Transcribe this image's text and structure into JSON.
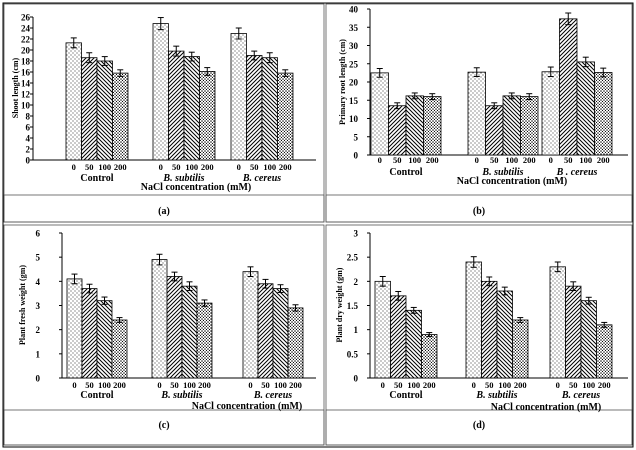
{
  "figure": {
    "panels": [
      {
        "label": "(a)"
      },
      {
        "label": "(b)"
      },
      {
        "label": "(c)"
      },
      {
        "label": "(d)"
      }
    ]
  },
  "chart_data": [
    {
      "type": "bar",
      "ylabel": "Shoot length (cm)",
      "xlabel": "NaCl concentration (mM)",
      "ylim": [
        0,
        26
      ],
      "yticks": [
        0,
        2,
        4,
        6,
        8,
        10,
        12,
        14,
        16,
        18,
        20,
        22,
        24,
        26
      ],
      "groups": [
        "Control",
        "B. subtilis",
        "B. cereus"
      ],
      "concentrations": [
        "0",
        "50",
        "100",
        "200"
      ],
      "series": [
        {
          "name": "0",
          "values": [
            21.3,
            24.8,
            23.0
          ],
          "errors": [
            0.9,
            1.1,
            1.0
          ]
        },
        {
          "name": "50",
          "values": [
            18.6,
            19.8,
            19.0
          ],
          "errors": [
            0.9,
            0.9,
            0.8
          ]
        },
        {
          "name": "100",
          "values": [
            18.0,
            18.8,
            18.6
          ],
          "errors": [
            0.8,
            0.8,
            0.9
          ]
        },
        {
          "name": "200",
          "values": [
            15.8,
            16.1,
            15.8
          ],
          "errors": [
            0.6,
            0.7,
            0.6
          ]
        }
      ]
    },
    {
      "type": "bar",
      "ylabel": "Primary root length (cm)",
      "xlabel": "NaCl concentration (mM)",
      "ylim": [
        0,
        40
      ],
      "yticks": [
        0,
        5,
        10,
        15,
        20,
        25,
        30,
        35,
        40
      ],
      "groups": [
        "Control",
        "B. subtilis",
        "B . cereus"
      ],
      "concentrations": [
        "0",
        "50",
        "100",
        "200"
      ],
      "series": [
        {
          "name": "0",
          "values": [
            22.5,
            22.7,
            22.8
          ],
          "errors": [
            1.2,
            1.2,
            1.3
          ]
        },
        {
          "name": "50",
          "values": [
            13.5,
            13.5,
            37.3
          ],
          "errors": [
            0.8,
            0.8,
            1.6
          ]
        },
        {
          "name": "100",
          "values": [
            16.2,
            16.2,
            25.5
          ],
          "errors": [
            0.8,
            0.8,
            1.3
          ]
        },
        {
          "name": "200",
          "values": [
            16.0,
            16.0,
            22.6
          ],
          "errors": [
            0.8,
            0.8,
            1.2
          ]
        }
      ]
    },
    {
      "type": "bar",
      "ylabel": "Plant fresh weight (gm)",
      "xlabel": "NaCl concentration (mM)",
      "ylim": [
        0,
        6
      ],
      "yticks": [
        0,
        1,
        2,
        3,
        4,
        5,
        6
      ],
      "groups": [
        "Control",
        "B. subtilis",
        "B. cereus"
      ],
      "concentrations": [
        "0",
        "50",
        "100",
        "200"
      ],
      "series": [
        {
          "name": "0",
          "values": [
            4.1,
            4.9,
            4.4
          ],
          "errors": [
            0.2,
            0.22,
            0.2
          ]
        },
        {
          "name": "50",
          "values": [
            3.7,
            4.2,
            3.9
          ],
          "errors": [
            0.18,
            0.18,
            0.18
          ]
        },
        {
          "name": "100",
          "values": [
            3.2,
            3.8,
            3.7
          ],
          "errors": [
            0.15,
            0.18,
            0.16
          ]
        },
        {
          "name": "200",
          "values": [
            2.4,
            3.1,
            2.9
          ],
          "errors": [
            0.1,
            0.13,
            0.13
          ]
        }
      ]
    },
    {
      "type": "bar",
      "ylabel": "Plant dry weight (gm)",
      "xlabel": "NaCl concentration (mM)",
      "ylim": [
        0,
        3
      ],
      "yticks": [
        "0",
        "0.5",
        "1",
        "1.5",
        "2",
        "2.5",
        "3"
      ],
      "groups": [
        "Control",
        "B. subtilis",
        "B. cereus"
      ],
      "concentrations": [
        "0",
        "50",
        "100",
        "200"
      ],
      "series": [
        {
          "name": "0",
          "values": [
            2.0,
            2.4,
            2.3
          ],
          "errors": [
            0.1,
            0.11,
            0.1
          ]
        },
        {
          "name": "50",
          "values": [
            1.7,
            2.0,
            1.9
          ],
          "errors": [
            0.09,
            0.09,
            0.09
          ]
        },
        {
          "name": "100",
          "values": [
            1.4,
            1.8,
            1.6
          ],
          "errors": [
            0.06,
            0.08,
            0.07
          ]
        },
        {
          "name": "200",
          "values": [
            0.9,
            1.2,
            1.1
          ],
          "errors": [
            0.04,
            0.05,
            0.05
          ]
        }
      ]
    }
  ]
}
